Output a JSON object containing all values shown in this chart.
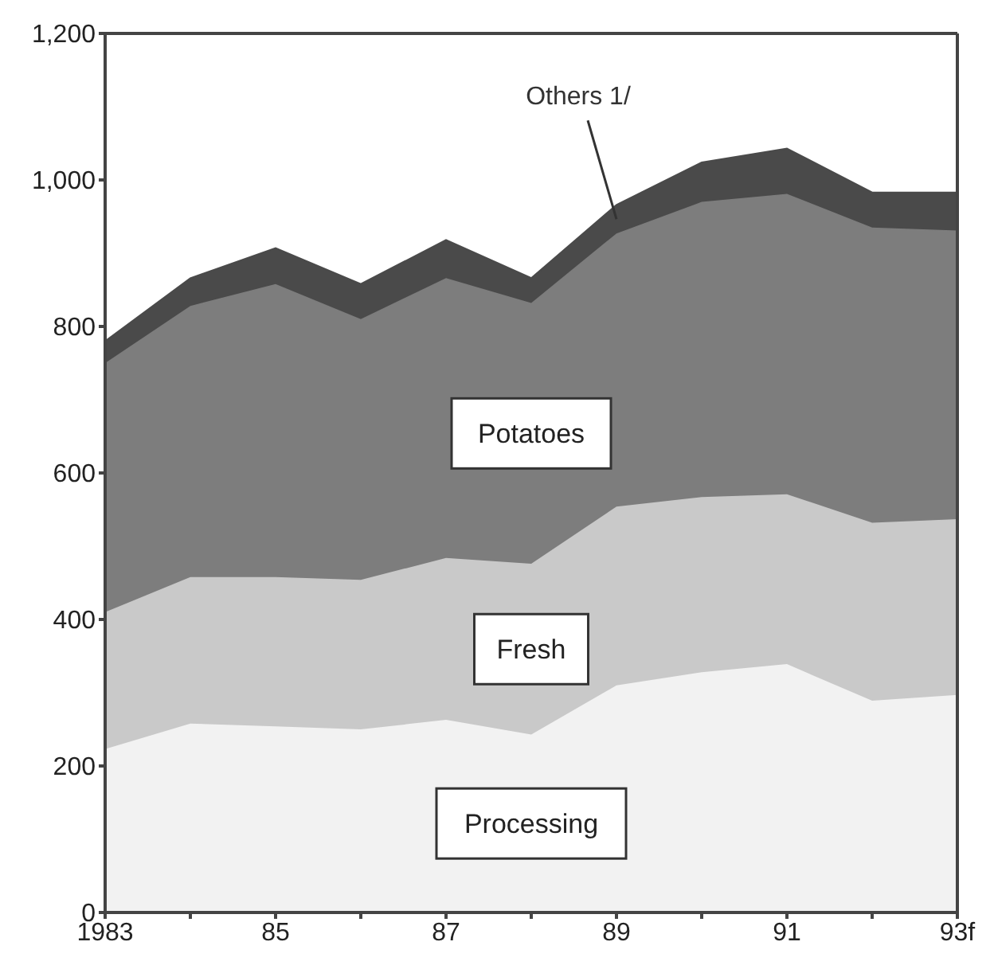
{
  "chart_data": {
    "type": "area",
    "stacked": true,
    "categories": [
      "1983",
      null,
      "85",
      null,
      "87",
      null,
      "89",
      null,
      "91",
      null,
      "93f"
    ],
    "series": [
      {
        "name": "Processing",
        "color": "#f2f2f2",
        "values": [
          223,
          258,
          254,
          250,
          263,
          243,
          310,
          328,
          339,
          289,
          297
        ]
      },
      {
        "name": "Fresh",
        "color": "#c9c9c9",
        "values": [
          187,
          200,
          204,
          204,
          221,
          233,
          244,
          239,
          232,
          243,
          240
        ]
      },
      {
        "name": "Potatoes",
        "color": "#7d7d7d",
        "values": [
          340,
          370,
          400,
          356,
          382,
          356,
          373,
          403,
          410,
          403,
          394
        ]
      },
      {
        "name": "Others 1/",
        "color": "#4a4a4a",
        "values": [
          30,
          38,
          49,
          48,
          52,
          34,
          39,
          54,
          62,
          48,
          52
        ]
      }
    ],
    "ylim": [
      0,
      1200
    ],
    "yticks": [
      0,
      200,
      400,
      600,
      800,
      {
        "value": 1000,
        "label": "1,000"
      },
      {
        "value": 1200,
        "label": "1,200"
      }
    ],
    "grid": false,
    "legend": false
  }
}
